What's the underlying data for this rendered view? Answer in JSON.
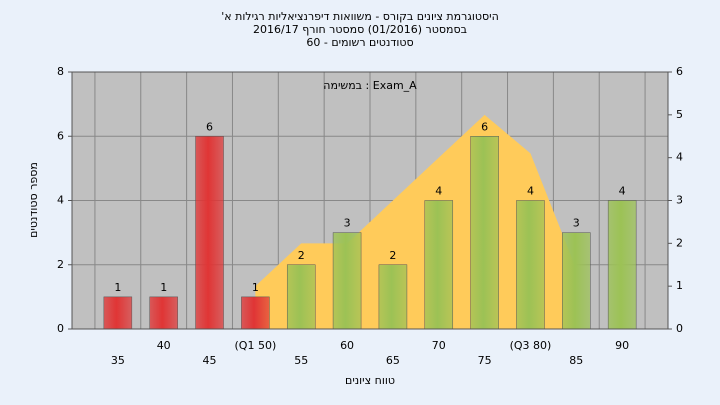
{
  "chart_data": {
    "type": "bar",
    "title": "'היסטוגרמת ציונים בקורס - משוואות דיפרנציאליות רגילות א",
    "subtitle": [
      "בסמסטר  (01/2016)  סמסטר חורף 2016/17",
      "סטודנטים רשומים - 60"
    ],
    "annotation": "במשימה : Exam_A",
    "x_label": "טווח ציונים",
    "y_label": "מספר סטודנטים",
    "categories": [
      "35",
      "40",
      "45",
      "(Q1 50)",
      "55",
      "60",
      "65",
      "70",
      "75",
      "(Q3 80)",
      "85",
      "90"
    ],
    "series": [
      {
        "values": [
          1,
          1,
          6,
          1,
          2,
          3,
          2,
          4,
          6,
          4,
          3,
          4
        ],
        "colors": [
          "#e03535",
          "#e03535",
          "#e03535",
          "#e03535",
          "#9cc255",
          "#9cc255",
          "#9cc255",
          "#9cc255",
          "#9cc255",
          "#9cc255",
          "#9cc255",
          "#9cc255"
        ]
      },
      {
        "type": "area",
        "axis": "y2",
        "color": "#ffcb5a",
        "values": [
          null,
          null,
          null,
          1,
          2,
          2,
          3,
          4,
          5,
          4.1,
          1.4,
          null
        ]
      }
    ],
    "ylim": [
      0,
      8
    ],
    "yticks": [
      0,
      2,
      4,
      6,
      8
    ],
    "y2lim": [
      0,
      6
    ],
    "y2ticks": [
      0,
      1,
      2,
      3,
      4,
      5,
      6
    ],
    "grid": true
  }
}
